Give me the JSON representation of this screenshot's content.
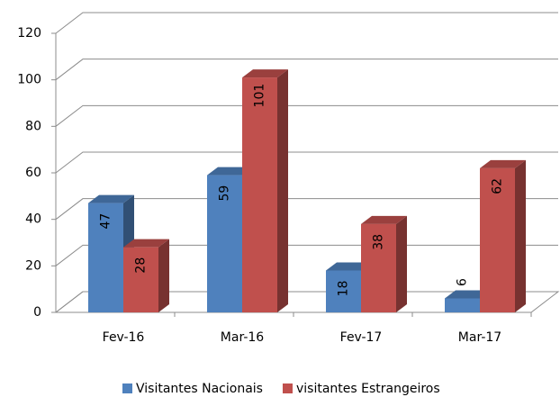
{
  "chart_data": {
    "type": "bar3d",
    "categories": [
      "Fev-16",
      "Mar-16",
      "Fev-17",
      "Mar-17"
    ],
    "series": [
      {
        "name": "Visitantes Nacionais",
        "color": "#4f81bd",
        "values": [
          47,
          59,
          18,
          6
        ]
      },
      {
        "name": "visitantes Estrangeiros",
        "color": "#c0504d",
        "values": [
          28,
          101,
          38,
          62
        ]
      }
    ],
    "ylim": [
      0,
      120
    ],
    "yticks": [
      0,
      20,
      40,
      60,
      80,
      100,
      120
    ],
    "grid": true,
    "legend": "bottom"
  }
}
